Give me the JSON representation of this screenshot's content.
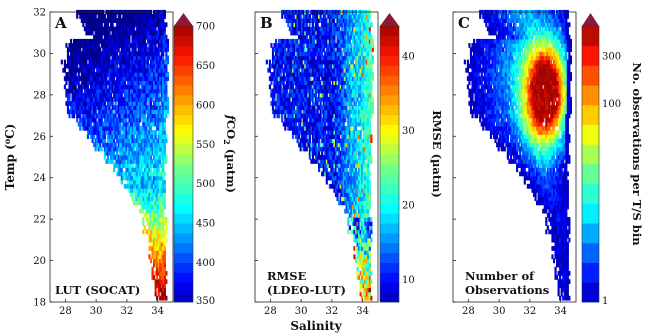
{
  "axes": {
    "ylabel": "Temp (",
    "ylabel_unit": "o",
    "ylabel_end": "C)",
    "xlabel": "Salinity",
    "x_ticks": [
      28,
      30,
      32,
      34
    ],
    "y_ticks": [
      18,
      20,
      22,
      24,
      26,
      28,
      30,
      32
    ],
    "xlim": [
      27,
      35
    ],
    "ylim": [
      18,
      32
    ]
  },
  "chart_data": [
    {
      "type": "heatmap",
      "panel_label": "A",
      "annotation": [
        "LUT (SOCAT)"
      ],
      "colorbar": {
        "label_f": "f",
        "label_co": "CO",
        "label_sub": "2",
        "label_unit": " (µatm)",
        "range": [
          350,
          700
        ],
        "ticks": [
          350,
          400,
          450,
          500,
          550,
          600,
          650,
          700
        ],
        "levels": 28
      },
      "value_pattern": "warm 26–29 °C core ~400–450 µatm, high salinity low-temperature tongue up to ~650–700 µatm"
    },
    {
      "type": "heatmap",
      "panel_label": "B",
      "annotation": [
        "RMSE",
        "(LDEO-LUT)"
      ],
      "colorbar": {
        "label": "RMSE (µatm)",
        "range": [
          7,
          44
        ],
        "ticks": [
          10,
          20,
          30,
          40
        ],
        "levels": 28
      }
    },
    {
      "type": "heatmap",
      "panel_label": "C",
      "annotation": [
        "Number of",
        "Observations"
      ],
      "colorbar": {
        "label": "No. observations per T/S bin",
        "scale": "log",
        "range": [
          1,
          600
        ],
        "ticks": [
          1,
          100,
          300
        ],
        "tick_labels": [
          "1",
          "100",
          "300"
        ],
        "levels": 14
      }
    }
  ],
  "colors": {
    "colorbar_top_arrow": "#8b1a3a"
  }
}
